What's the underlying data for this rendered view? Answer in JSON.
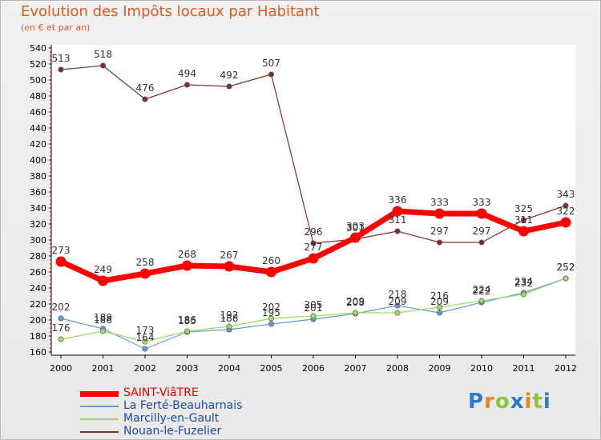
{
  "title": "Evolution des Impôts locaux par Habitant",
  "subtitle": "(en € et par an)",
  "logo": {
    "text": "Proxiti",
    "colors": [
      "#2f79c9",
      "#e8851c",
      "#8cc43a",
      "#2f79c9",
      "#e8851c",
      "#8cc43a",
      "#2f79c9"
    ]
  },
  "chart_data": {
    "type": "line",
    "title": "Evolution des Impôts locaux par Habitant",
    "ylabel": "(en € et par an)",
    "xlabel": "",
    "categories": [
      "2000",
      "2001",
      "2002",
      "2003",
      "2004",
      "2005",
      "2006",
      "2007",
      "2008",
      "2009",
      "2010",
      "2011",
      "2012"
    ],
    "ylim": [
      160,
      540
    ],
    "yticks": [
      160,
      180,
      200,
      220,
      240,
      260,
      280,
      300,
      320,
      340,
      360,
      380,
      400,
      420,
      440,
      460,
      480,
      500,
      520,
      540
    ],
    "grid": false,
    "legend": "bottom-left",
    "series": [
      {
        "name": "SAINT-ViâTRE",
        "color": "#ff0000",
        "values": [
          273,
          249,
          258,
          268,
          267,
          260,
          277,
          303,
          336,
          333,
          333,
          311,
          322
        ]
      },
      {
        "name": "La Ferté-Beauharnais",
        "color": "#6699cc",
        "values": [
          202,
          189,
          164,
          185,
          188,
          195,
          201,
          208,
          218,
          209,
          222,
          234,
          252
        ]
      },
      {
        "name": "Marcilly-en-Gault",
        "color": "#99dd66",
        "values": [
          176,
          186,
          173,
          186,
          192,
          202,
          205,
          209,
          209,
          216,
          224,
          232,
          252
        ]
      },
      {
        "name": "Nouan-le-Fuzelier",
        "color": "#803030",
        "values": [
          513,
          518,
          476,
          494,
          492,
          507,
          296,
          301,
          311,
          297,
          297,
          325,
          343
        ]
      }
    ]
  }
}
